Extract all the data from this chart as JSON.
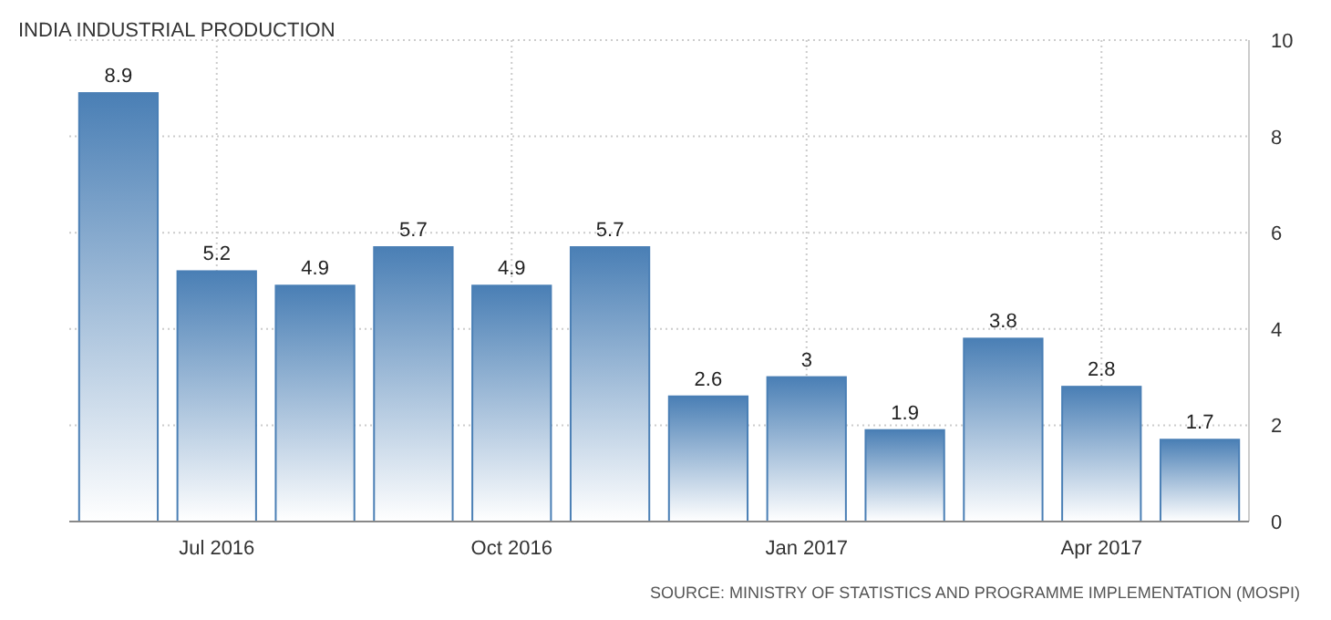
{
  "chart_data": {
    "type": "bar",
    "title": "INDIA INDUSTRIAL PRODUCTION",
    "categories": [
      null,
      "Jul 2016",
      null,
      null,
      "Oct 2016",
      null,
      null,
      "Jan 2017",
      null,
      null,
      "Apr 2017",
      null
    ],
    "values": [
      8.9,
      5.2,
      4.9,
      5.7,
      4.9,
      5.7,
      2.6,
      3,
      1.9,
      3.8,
      2.8,
      1.7
    ],
    "color": "#4a7fb5",
    "data_labels": true,
    "grid": true,
    "ylim": [
      0,
      10
    ],
    "yticks": [
      0,
      2,
      4,
      6,
      8,
      10
    ],
    "annotations": [
      "SOURCE: MINISTRY OF STATISTICS AND PROGRAMME IMPLEMENTATION (MOSPI)"
    ]
  }
}
